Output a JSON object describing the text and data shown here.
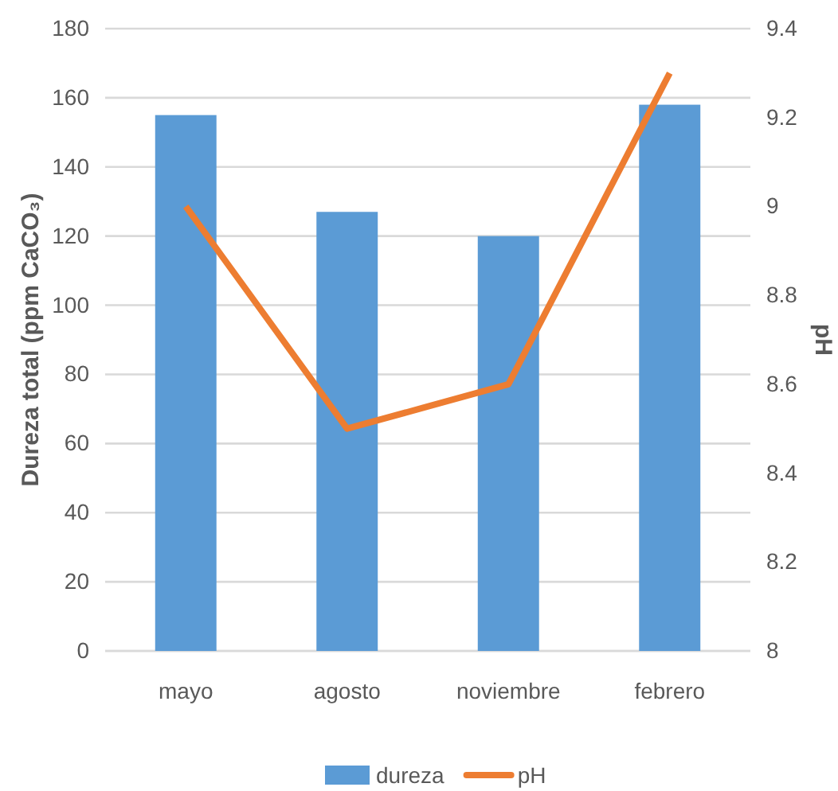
{
  "chart_data": {
    "type": "bar",
    "categories": [
      "mayo",
      "agosto",
      "noviembre",
      "febrero"
    ],
    "series": [
      {
        "name": "dureza",
        "color": "#5b9bd5",
        "values": [
          155,
          127,
          120,
          158
        ]
      },
      {
        "name": "pH",
        "type": "line",
        "axis": "y2",
        "color": "#ed7d31",
        "values": [
          9.0,
          8.5,
          8.6,
          9.3
        ]
      }
    ],
    "ylabel": "Dureza total (ppm CaCO₃)",
    "y2label": "pH",
    "ylim": [
      0,
      180
    ],
    "yticks": [
      0,
      20,
      40,
      60,
      80,
      100,
      120,
      140,
      160,
      180
    ],
    "y2lim": [
      8,
      9.4
    ],
    "y2ticks": [
      8,
      {
        "value": 8.2,
        "label": "8.2"
      },
      {
        "value": 8.4,
        "label": "8.4"
      },
      {
        "value": 8.6,
        "label": "8.6"
      },
      {
        "value": 8.8,
        "label": "8.8"
      },
      9,
      {
        "value": 9.2,
        "label": "9.2"
      },
      {
        "value": 9.4,
        "label": "9.4"
      }
    ],
    "grid": "y",
    "legend": "bottom",
    "marker": "none",
    "line_style": "solid"
  }
}
